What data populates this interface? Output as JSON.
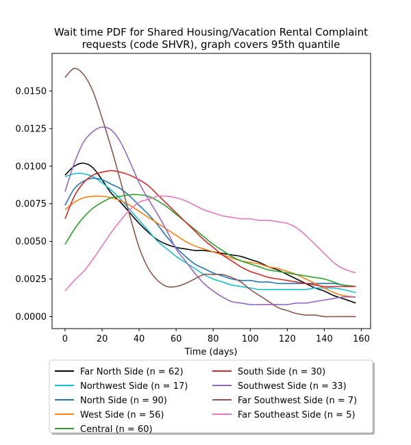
{
  "chart_data": {
    "type": "line",
    "title": "Wait time PDF for Shared Housing/Vacation Rental Complaint requests (code SHVR), graph covers 95th quantile",
    "title_lines": [
      "Wait time PDF for Shared Housing/Vacation Rental Complaint",
      "requests (code SHVR), graph covers 95th quantile"
    ],
    "xlabel": "Time (days)",
    "ylabel": "",
    "xlim": [
      -7,
      165
    ],
    "ylim": [
      -0.0008,
      0.0175
    ],
    "xticks": [
      0,
      20,
      40,
      60,
      80,
      100,
      120,
      140,
      160
    ],
    "xtick_labels": [
      "0",
      "20",
      "40",
      "60",
      "80",
      "100",
      "120",
      "140",
      "160"
    ],
    "yticks": [
      0.0,
      0.0025,
      0.005,
      0.0075,
      0.01,
      0.0125,
      0.015
    ],
    "ytick_labels": [
      "0.0000",
      "0.0025",
      "0.0050",
      "0.0075",
      "0.0100",
      "0.0125",
      "0.0150"
    ],
    "grid": false,
    "legend_position": "below",
    "legend_columns": 2,
    "x": [
      0,
      5,
      10,
      15,
      20,
      25,
      30,
      35,
      40,
      45,
      50,
      55,
      60,
      65,
      70,
      75,
      80,
      85,
      90,
      95,
      100,
      105,
      110,
      115,
      120,
      125,
      130,
      135,
      140,
      145,
      150,
      157
    ],
    "series": [
      {
        "name": "Far North Side (n = 62)",
        "color": "#000000",
        "values": [
          0.0094,
          0.01,
          0.0102,
          0.0099,
          0.0091,
          0.0082,
          0.0076,
          0.0069,
          0.0062,
          0.0056,
          0.0051,
          0.0048,
          0.0046,
          0.0045,
          0.0044,
          0.0044,
          0.0043,
          0.0042,
          0.0041,
          0.004,
          0.0038,
          0.0036,
          0.0033,
          0.0031,
          0.0028,
          0.0025,
          0.0022,
          0.0019,
          0.0017,
          0.0014,
          0.0012,
          0.0009
        ]
      },
      {
        "name": "Northwest Side (n = 17)",
        "color": "#17becf",
        "values": [
          0.0093,
          0.0095,
          0.0095,
          0.0093,
          0.0089,
          0.0084,
          0.0078,
          0.0071,
          0.0064,
          0.0057,
          0.005,
          0.0045,
          0.004,
          0.0036,
          0.0032,
          0.0028,
          0.0025,
          0.0023,
          0.0021,
          0.002,
          0.0019,
          0.0018,
          0.0018,
          0.0018,
          0.0018,
          0.0018,
          0.0018,
          0.0019,
          0.0019,
          0.0019,
          0.0018,
          0.0016
        ]
      },
      {
        "name": "North Side (n = 90)",
        "color": "#1f77b4",
        "values": [
          0.0074,
          0.0085,
          0.009,
          0.0092,
          0.0091,
          0.0088,
          0.0085,
          0.008,
          0.0074,
          0.0068,
          0.0061,
          0.0053,
          0.0046,
          0.004,
          0.0035,
          0.0032,
          0.0029,
          0.0027,
          0.0025,
          0.0024,
          0.0024,
          0.0023,
          0.0023,
          0.0022,
          0.0022,
          0.0022,
          0.0022,
          0.0022,
          0.0022,
          0.0022,
          0.0021,
          0.002
        ]
      },
      {
        "name": "West Side (n = 56)",
        "color": "#ff7f0e",
        "values": [
          0.0071,
          0.0076,
          0.0079,
          0.008,
          0.008,
          0.0079,
          0.0077,
          0.0074,
          0.007,
          0.0066,
          0.0062,
          0.0058,
          0.0054,
          0.005,
          0.0047,
          0.0045,
          0.0043,
          0.0041,
          0.0039,
          0.0037,
          0.0036,
          0.0035,
          0.0033,
          0.0032,
          0.003,
          0.0028,
          0.0025,
          0.0022,
          0.0019,
          0.0016,
          0.0014,
          0.0013
        ]
      },
      {
        "name": "Central (n = 60)",
        "color": "#2ca02c",
        "values": [
          0.0048,
          0.0058,
          0.0066,
          0.0072,
          0.0076,
          0.0079,
          0.008,
          0.0081,
          0.0081,
          0.008,
          0.0077,
          0.0073,
          0.0068,
          0.0063,
          0.0058,
          0.0053,
          0.0048,
          0.0044,
          0.004,
          0.0037,
          0.0035,
          0.0033,
          0.0031,
          0.003,
          0.0029,
          0.0028,
          0.0027,
          0.0026,
          0.0025,
          0.0023,
          0.0021,
          0.002
        ]
      },
      {
        "name": "South Side (n = 30)",
        "color": "#d62728",
        "values": [
          0.0065,
          0.008,
          0.0089,
          0.0094,
          0.0096,
          0.0097,
          0.0096,
          0.0094,
          0.0091,
          0.0087,
          0.0081,
          0.0075,
          0.0069,
          0.0063,
          0.0057,
          0.0051,
          0.0046,
          0.0041,
          0.0037,
          0.0033,
          0.003,
          0.0028,
          0.0026,
          0.0025,
          0.0024,
          0.0023,
          0.0022,
          0.0021,
          0.002,
          0.002,
          0.002,
          0.002
        ]
      },
      {
        "name": "Southwest Side (n = 33)",
        "color": "#9467bd",
        "values": [
          0.0083,
          0.0102,
          0.0116,
          0.0123,
          0.0126,
          0.0124,
          0.0116,
          0.0103,
          0.0089,
          0.0078,
          0.0068,
          0.0057,
          0.0045,
          0.0037,
          0.0029,
          0.0022,
          0.0017,
          0.0013,
          0.001,
          0.0009,
          0.0008,
          0.0008,
          0.0008,
          0.0008,
          0.0008,
          0.0009,
          0.0009,
          0.001,
          0.0011,
          0.0012,
          0.0013,
          0.0013
        ]
      },
      {
        "name": "Far Southwest Side (n = 7)",
        "color": "#8c564b",
        "values": [
          0.0159,
          0.0165,
          0.0161,
          0.015,
          0.0132,
          0.0112,
          0.009,
          0.0067,
          0.0046,
          0.0032,
          0.0024,
          0.002,
          0.002,
          0.0022,
          0.0025,
          0.0028,
          0.0028,
          0.0028,
          0.0026,
          0.0023,
          0.0018,
          0.0014,
          0.001,
          0.0006,
          0.0004,
          0.0002,
          0.0001,
          0.0001,
          0.0,
          0.0,
          0.0,
          0.0
        ]
      },
      {
        "name": "Far Southeast Side (n = 5)",
        "color": "#e377c2",
        "values": [
          0.0017,
          0.0024,
          0.003,
          0.0038,
          0.0047,
          0.0056,
          0.0064,
          0.0071,
          0.0076,
          0.0078,
          0.008,
          0.008,
          0.0079,
          0.0077,
          0.0074,
          0.0071,
          0.0069,
          0.0067,
          0.0066,
          0.0065,
          0.0065,
          0.0064,
          0.0064,
          0.0063,
          0.0062,
          0.0059,
          0.0054,
          0.0048,
          0.0042,
          0.0036,
          0.0032,
          0.0029
        ]
      }
    ],
    "legend_order": [
      [
        "Far North Side (n = 62)",
        "South Side (n = 30)"
      ],
      [
        "Northwest Side (n = 17)",
        "Southwest Side (n = 33)"
      ],
      [
        "North Side (n = 90)",
        "Far Southwest Side (n = 7)"
      ],
      [
        "West Side (n = 56)",
        "Far Southeast Side (n = 5)"
      ],
      [
        "Central (n = 60)",
        null
      ]
    ]
  }
}
